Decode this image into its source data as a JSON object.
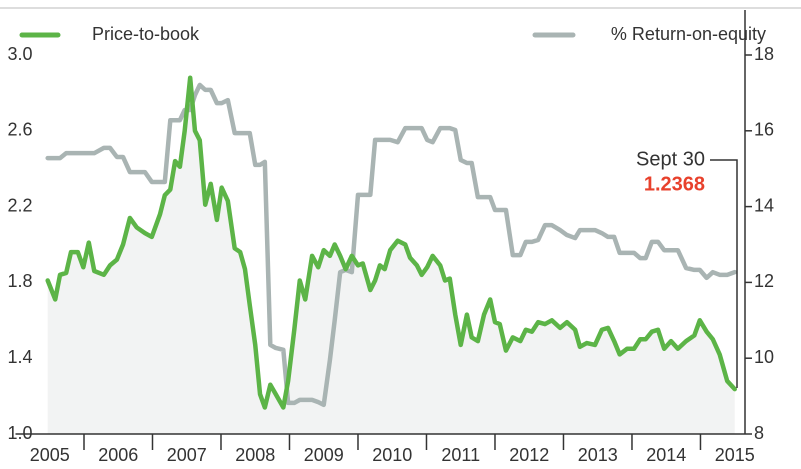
{
  "chart_data": {
    "type": "line",
    "x": [
      2005.47,
      2005.58,
      2005.65,
      2005.74,
      2005.81,
      2005.91,
      2005.99,
      2006.07,
      2006.15,
      2006.29,
      2006.38,
      2006.48,
      2006.57,
      2006.67,
      2006.77,
      2006.89,
      2006.99,
      2007.11,
      2007.18,
      2007.26,
      2007.33,
      2007.4,
      2007.47,
      2007.55,
      2007.62,
      2007.69,
      2007.77,
      2007.85,
      2007.94,
      2008.01,
      2008.1,
      2008.2,
      2008.28,
      2008.35,
      2008.42,
      2008.5,
      2008.57,
      2008.64,
      2008.72,
      2008.8,
      2008.91,
      2008.98,
      2009.07,
      2009.15,
      2009.23,
      2009.33,
      2009.42,
      2009.5,
      2009.59,
      2009.66,
      2009.74,
      2009.82,
      2009.91,
      2010.0,
      2010.07,
      2010.18,
      2010.25,
      2010.32,
      2010.39,
      2010.47,
      2010.58,
      2010.69,
      2010.76,
      2010.86,
      2010.93,
      2011.01,
      2011.09,
      2011.2,
      2011.27,
      2011.34,
      2011.42,
      2011.5,
      2011.59,
      2011.66,
      2011.75,
      2011.84,
      2011.93,
      2012.0,
      2012.07,
      2012.16,
      2012.26,
      2012.37,
      2012.45,
      2012.54,
      2012.63,
      2012.73,
      2012.83,
      2012.95,
      2013.05,
      2013.17,
      2013.24,
      2013.34,
      2013.46,
      2013.56,
      2013.65,
      2013.74,
      2013.82,
      2013.93,
      2014.03,
      2014.12,
      2014.2,
      2014.29,
      2014.38,
      2014.47,
      2014.57,
      2014.67,
      2014.79,
      2014.91,
      2014.99,
      2015.09,
      2015.18,
      2015.28,
      2015.39,
      2015.5
    ],
    "series": [
      {
        "name": "Price-to-book",
        "color": "#5cb447",
        "values": [
          1.81,
          1.71,
          1.84,
          1.85,
          1.96,
          1.96,
          1.88,
          2.01,
          1.86,
          1.84,
          1.89,
          1.92,
          2.0,
          2.14,
          2.09,
          2.06,
          2.04,
          2.16,
          2.26,
          2.29,
          2.44,
          2.41,
          2.6,
          2.88,
          2.6,
          2.55,
          2.21,
          2.32,
          2.13,
          2.3,
          2.23,
          1.98,
          1.96,
          1.87,
          1.68,
          1.47,
          1.21,
          1.14,
          1.26,
          1.21,
          1.14,
          1.28,
          1.55,
          1.81,
          1.71,
          1.94,
          1.88,
          1.97,
          1.94,
          2.0,
          1.94,
          1.87,
          1.94,
          1.89,
          1.9,
          1.76,
          1.81,
          1.89,
          1.87,
          1.97,
          2.02,
          2.0,
          1.93,
          1.89,
          1.84,
          1.88,
          1.94,
          1.89,
          1.81,
          1.82,
          1.63,
          1.47,
          1.63,
          1.51,
          1.49,
          1.63,
          1.71,
          1.59,
          1.58,
          1.44,
          1.51,
          1.49,
          1.55,
          1.54,
          1.59,
          1.58,
          1.6,
          1.56,
          1.59,
          1.55,
          1.46,
          1.48,
          1.47,
          1.55,
          1.56,
          1.49,
          1.42,
          1.45,
          1.45,
          1.5,
          1.5,
          1.54,
          1.55,
          1.45,
          1.49,
          1.45,
          1.49,
          1.52,
          1.6,
          1.54,
          1.5,
          1.42,
          1.28,
          1.2368
        ]
      },
      {
        "name": "% Return-on-equity",
        "color": "#a9b4b3",
        "axis": "y2",
        "values": [
          15.28,
          15.28,
          15.28,
          15.41,
          15.41,
          15.41,
          15.41,
          15.41,
          15.41,
          15.55,
          15.55,
          15.31,
          15.31,
          14.91,
          14.91,
          14.91,
          14.65,
          14.65,
          14.65,
          16.28,
          16.28,
          16.28,
          16.55,
          16.55,
          16.94,
          17.21,
          17.08,
          17.08,
          16.73,
          16.73,
          16.81,
          15.94,
          15.94,
          15.94,
          15.94,
          15.1,
          15.1,
          15.18,
          10.35,
          10.27,
          10.22,
          8.82,
          8.82,
          8.9,
          8.9,
          8.9,
          8.84,
          8.77,
          9.95,
          11.0,
          12.27,
          12.33,
          12.27,
          14.31,
          14.31,
          14.31,
          15.76,
          15.76,
          15.76,
          15.76,
          15.7,
          16.07,
          16.07,
          16.07,
          16.07,
          15.76,
          15.7,
          16.07,
          16.07,
          16.07,
          16.02,
          15.23,
          15.15,
          15.15,
          14.25,
          14.25,
          14.25,
          13.91,
          13.91,
          13.91,
          12.72,
          12.72,
          13.07,
          13.07,
          13.12,
          13.51,
          13.51,
          13.38,
          13.25,
          13.17,
          13.38,
          13.38,
          13.38,
          13.3,
          13.2,
          13.2,
          12.78,
          12.78,
          12.78,
          12.64,
          12.64,
          13.07,
          13.07,
          12.85,
          12.85,
          12.85,
          12.38,
          12.33,
          12.33,
          12.12,
          12.27,
          12.2,
          12.2,
          12.27
        ]
      }
    ],
    "annotation": "Sept 30",
    "xlim": [
      2005,
      2015.65
    ],
    "xticks": [
      {
        "value": 2005.5,
        "label": "2005"
      },
      {
        "value": 2006.5,
        "label": "2006"
      },
      {
        "value": 2007.5,
        "label": "2007"
      },
      {
        "value": 2008.5,
        "label": "2008"
      },
      {
        "value": 2009.5,
        "label": "2009"
      },
      {
        "value": 2010.5,
        "label": "2010"
      },
      {
        "value": 2011.5,
        "label": "2011"
      },
      {
        "value": 2012.5,
        "label": "2012"
      },
      {
        "value": 2013.5,
        "label": "2013"
      },
      {
        "value": 2014.5,
        "label": "2014"
      },
      {
        "value": 2015.5,
        "label": "2015"
      }
    ],
    "ylim": [
      1.0,
      3.0
    ],
    "yticks": [
      {
        "value": 1.0,
        "label": "1.0"
      },
      1.4,
      1.8,
      2.2,
      2.6,
      {
        "value": 3.0,
        "label": "3.0"
      }
    ],
    "y2lim": [
      8,
      18
    ],
    "y2ticks": [
      8,
      10,
      12,
      14,
      16,
      18
    ],
    "area_fill": "#f2f3f3",
    "annotation_color": "#e8412c"
  }
}
